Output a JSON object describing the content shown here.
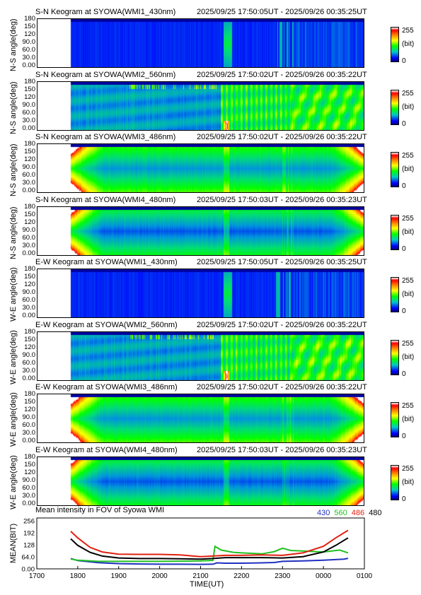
{
  "panels": [
    {
      "title": "S-N Keogram at SYOWA(WMI1_430nm)",
      "time": "2025/09/25 17:50:05UT - 2025/09/26 00:35:25UT",
      "ylabel": "N-S angle(deg)",
      "kind": "blue"
    },
    {
      "title": "S-N Keogram at SYOWA(WMI2_560nm)",
      "time": "2025/09/25 17:50:02UT - 2025/09/26 00:35:22UT",
      "ylabel": "N-S angle(deg)",
      "kind": "green"
    },
    {
      "title": "S-N Keogram at SYOWA(WMI3_486nm)",
      "time": "2025/09/25 17:50:02UT - 2025/09/26 00:35:22UT",
      "ylabel": "N-S angle(deg)",
      "kind": "dome"
    },
    {
      "title": "S-N Keogram at SYOWA(WMI4_480nm)",
      "time": "2025/09/25 17:50:03UT - 2025/09/26 00:35:23UT",
      "ylabel": "N-S angle(deg)",
      "kind": "dome2"
    },
    {
      "title": "E-W Keogram at SYOWA(WMI1_430nm)",
      "time": "2025/09/25 17:50:05UT - 2025/09/26 00:35:25UT",
      "ylabel": "W-E angle(deg)",
      "kind": "blue"
    },
    {
      "title": "E-W Keogram at SYOWA(WMI2_560nm)",
      "time": "2025/09/25 17:50:02UT - 2025/09/26 00:35:22UT",
      "ylabel": "W-E angle(deg)",
      "kind": "green"
    },
    {
      "title": "E-W Keogram at SYOWA(WMI3_486nm)",
      "time": "2025/09/25 17:50:02UT - 2025/09/26 00:35:22UT",
      "ylabel": "W-E angle(deg)",
      "kind": "dome"
    },
    {
      "title": "E-W Keogram at SYOWA(WMI4_480nm)",
      "time": "2025/09/25 17:50:03UT - 2025/09/26 00:35:23UT",
      "ylabel": "W-E angle(deg)",
      "kind": "dome2"
    }
  ],
  "keogram_yticks": [
    "180",
    "150",
    "120",
    "90.0",
    "60.0",
    "30.0",
    "0.00"
  ],
  "colorbar": {
    "max": "255",
    "unit": "(bit)",
    "min": "0"
  },
  "mean_panel": {
    "title": "Mean intensity in FOV of Syowa WMI",
    "ylabel": "MEAN(BIT)",
    "xlabel": "TIME(UT)",
    "legend": [
      {
        "label": "430",
        "color": "#2030c0"
      },
      {
        "label": "560",
        "color": "#20c020"
      },
      {
        "label": "486",
        "color": "#e02010"
      },
      {
        "label": "480",
        "color": "#000000"
      }
    ]
  },
  "chart_data": {
    "type": "line",
    "title": "Mean intensity in FOV of Syowa WMI",
    "xlabel": "TIME(UT)",
    "ylabel": "MEAN(BIT)",
    "xticks": [
      "1700",
      "1800",
      "1900",
      "2000",
      "2100",
      "2200",
      "2300",
      "0000",
      "0100"
    ],
    "yticks": [
      "256",
      "192",
      "128",
      "64.0",
      "0.00"
    ],
    "ylim": [
      0,
      256
    ],
    "xlim_hours": [
      17.0,
      25.0
    ],
    "series": [
      {
        "name": "430",
        "color": "#2030c0",
        "x": [
          17.83,
          18.0,
          18.5,
          19.0,
          19.5,
          20.0,
          20.5,
          21.0,
          21.3,
          21.4,
          21.6,
          22.0,
          22.5,
          22.8,
          23.0,
          23.5,
          24.0,
          24.5,
          24.6
        ],
        "y": [
          55,
          44,
          33,
          28,
          26,
          25,
          25,
          24,
          25,
          32,
          30,
          30,
          32,
          34,
          40,
          42,
          46,
          52,
          56
        ]
      },
      {
        "name": "560",
        "color": "#20c020",
        "x": [
          17.83,
          18.0,
          18.5,
          19.0,
          19.5,
          20.0,
          20.5,
          21.0,
          21.3,
          21.35,
          21.5,
          21.8,
          22.0,
          22.5,
          22.8,
          23.0,
          23.2,
          23.5,
          24.0,
          24.4,
          24.6
        ],
        "y": [
          52,
          46,
          40,
          40,
          40,
          40,
          41,
          42,
          45,
          120,
          100,
          88,
          85,
          80,
          92,
          110,
          98,
          95,
          90,
          100,
          85
        ]
      },
      {
        "name": "486",
        "color": "#e02010",
        "x": [
          17.83,
          18.0,
          18.3,
          18.6,
          19.0,
          19.5,
          20.0,
          20.5,
          21.0,
          21.3,
          21.6,
          22.0,
          22.5,
          23.0,
          23.5,
          24.0,
          24.3,
          24.6
        ],
        "y": [
          200,
          165,
          115,
          90,
          78,
          77,
          77,
          74,
          65,
          68,
          72,
          72,
          74,
          72,
          85,
          120,
          165,
          205
        ]
      },
      {
        "name": "480",
        "color": "#000000",
        "x": [
          17.83,
          18.0,
          18.3,
          18.6,
          19.0,
          19.5,
          20.0,
          20.5,
          21.0,
          21.3,
          21.6,
          22.0,
          22.5,
          23.0,
          23.5,
          24.0,
          24.3,
          24.6
        ],
        "y": [
          160,
          125,
          88,
          68,
          58,
          55,
          55,
          54,
          52,
          55,
          60,
          60,
          60,
          58,
          65,
          90,
          125,
          165
        ]
      }
    ]
  }
}
